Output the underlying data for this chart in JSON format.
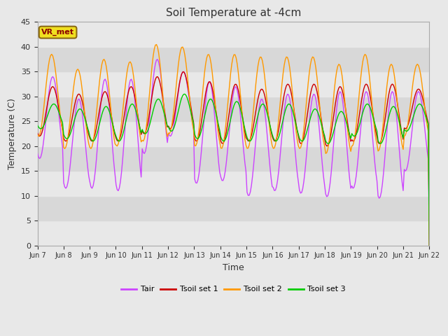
{
  "title": "Soil Temperature at -4cm",
  "xlabel": "Time",
  "ylabel": "Temperature (C)",
  "ylim": [
    0,
    45
  ],
  "annotation": "VR_met",
  "tick_labels": [
    "Jun 7",
    "Jun 8",
    "Jun 9",
    "Jun 10",
    "Jun 11",
    "Jun 12",
    "Jun 13",
    "Jun 14",
    "Jun 15",
    "Jun 16",
    "Jun 17",
    "Jun 18",
    "Jun 19",
    "Jun 20",
    "Jun 21",
    "Jun 22"
  ],
  "legend_labels": [
    "Tair",
    "Tsoil set 1",
    "Tsoil set 2",
    "Tsoil set 3"
  ],
  "line_colors": [
    "#cc44ff",
    "#cc0000",
    "#ff9900",
    "#00cc00"
  ],
  "background_color": "#e8e8e8",
  "plot_bg_color": "#e0e0e0",
  "grid_band_light": "#e8e8e8",
  "grid_band_dark": "#d8d8d8"
}
